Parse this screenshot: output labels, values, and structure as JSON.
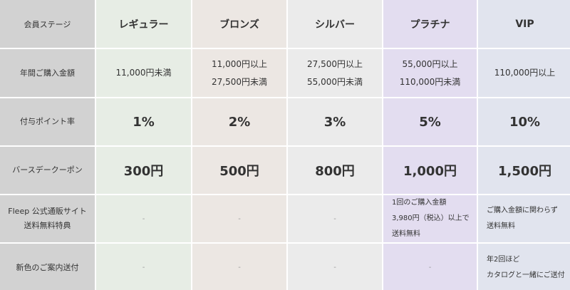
{
  "table": {
    "header": [
      "会員ステージ",
      "レギュラー",
      "ブロンズ",
      "シルバー",
      "プラチナ",
      "VIP"
    ],
    "rows": [
      {
        "label": [
          "年間ご購入金額"
        ],
        "cells": [
          [
            "11,000円未満"
          ],
          [
            "11,000円以上",
            "27,500円未満"
          ],
          [
            "27,500円以上",
            "55,000円未満"
          ],
          [
            "55,000円以上",
            "110,000円未満"
          ],
          [
            "110,000円以上"
          ]
        ]
      },
      {
        "label": [
          "付与ポイント率"
        ],
        "cells": [
          [
            "1%"
          ],
          [
            "2%"
          ],
          [
            "3%"
          ],
          [
            "5%"
          ],
          [
            "10%"
          ]
        ]
      },
      {
        "label": [
          "バースデークーポン"
        ],
        "cells": [
          [
            "300円"
          ],
          [
            "500円"
          ],
          [
            "800円"
          ],
          [
            "1,000円"
          ],
          [
            "1,500円"
          ]
        ]
      },
      {
        "label": [
          "Fleep 公式通販サイト",
          "送料無料特典"
        ],
        "cells": [
          [
            "-"
          ],
          [
            "-"
          ],
          [
            "-"
          ],
          [
            "1回のご購入金額",
            "3,980円（税込）以上で",
            "送料無料"
          ],
          [
            "ご購入金額に関わらず",
            "送料無料"
          ]
        ]
      },
      {
        "label": [
          "新色のご案内送付"
        ],
        "cells": [
          [
            "-"
          ],
          [
            "-"
          ],
          [
            "-"
          ],
          [
            "-"
          ],
          [
            "年2回ほど",
            "カタログと一緒にご送付"
          ]
        ]
      }
    ]
  }
}
